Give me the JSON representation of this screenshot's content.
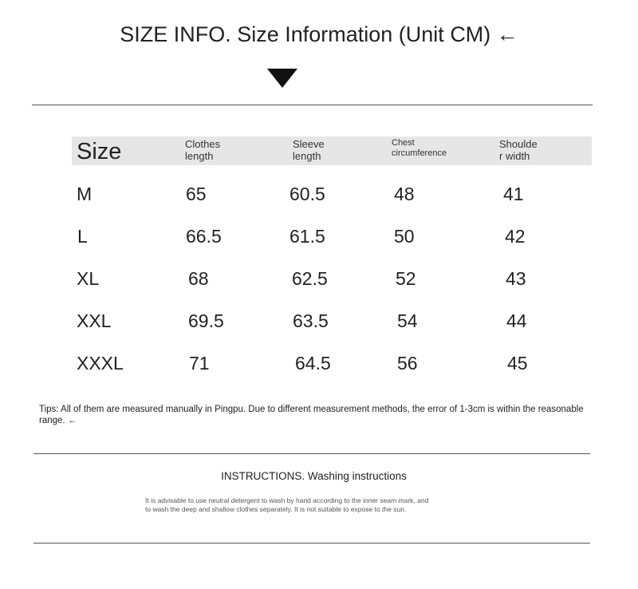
{
  "header": {
    "title": "SIZE INFO. Size Information (Unit CM) ←"
  },
  "table": {
    "columns": [
      [
        "Size"
      ],
      [
        "Clothes",
        "length"
      ],
      [
        "Sleeve",
        "length"
      ],
      [
        "Chest",
        "circumference"
      ],
      [
        "Shoulde",
        "r width"
      ]
    ],
    "rows": [
      [
        "M",
        65,
        60.5,
        48,
        41
      ],
      [
        "L",
        66.5,
        61.5,
        50,
        42
      ],
      [
        "XL",
        68,
        62.5,
        52,
        43
      ],
      [
        "XXL",
        69.5,
        63.5,
        54,
        44
      ],
      [
        "XXXL",
        71,
        64.5,
        56,
        45
      ]
    ]
  },
  "tips": "Tips: All of them are measured manually in Pingpu. Due to different measurement methods, the error of 1-3cm is within the reasonable range. ←",
  "instructions": {
    "title": "INSTRUCTIONS. Washing instructions",
    "lines": [
      "It is advisable to use neutral detergent to wash by hand according to the inner seam mark, and",
      "to wash the deep and shallow clothes separately. It is not suitable to expose to the sun."
    ]
  }
}
